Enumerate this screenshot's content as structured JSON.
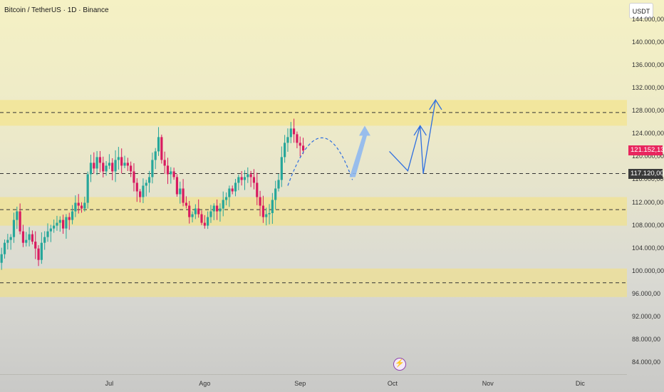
{
  "header": {
    "title": "Bitcoin / TetherUS · 1D · Binance"
  },
  "price_scale": {
    "currency": "USDT"
  },
  "current_price": {
    "label": "121.152,13",
    "value": 121152.13,
    "color": "#e8265e"
  },
  "level_price": {
    "label": "117.120,00",
    "value": 117120,
    "color": "#3a3a3a"
  },
  "event_icon": "lightning-icon",
  "colors": {
    "up": "#26a69a",
    "down": "#d81b60",
    "zone": "#f5e27a",
    "projection": "#2f6fe0"
  },
  "chart_data": {
    "type": "candlestick",
    "title": "Bitcoin / TetherUS · 1D · Binance",
    "y_axis": {
      "min": 82000,
      "max": 147500,
      "ticks": [
        {
          "value": 144000,
          "label": "144.000,00"
        },
        {
          "value": 140000,
          "label": "140.000,00"
        },
        {
          "value": 136000,
          "label": "136.000,00"
        },
        {
          "value": 132000,
          "label": "132.000,00"
        },
        {
          "value": 128000,
          "label": "128.000,00"
        },
        {
          "value": 124000,
          "label": "124.000,00"
        },
        {
          "value": 120000,
          "label": "120.000,00"
        },
        {
          "value": 116000,
          "label": "116.000,00"
        },
        {
          "value": 112000,
          "label": "112.000,00"
        },
        {
          "value": 108000,
          "label": "108.000,00"
        },
        {
          "value": 104000,
          "label": "104.000,00"
        },
        {
          "value": 100000,
          "label": "100.000,00"
        },
        {
          "value": 96000,
          "label": "96.000,00"
        },
        {
          "value": 92000,
          "label": "92.000,00"
        },
        {
          "value": 88000,
          "label": "88.000,00"
        },
        {
          "value": 84000,
          "label": "84.000,00"
        }
      ]
    },
    "x_axis": {
      "labels": [
        {
          "label": "Jul",
          "day": 35
        },
        {
          "label": "Ago",
          "day": 66
        },
        {
          "label": "Sep",
          "day": 97
        },
        {
          "label": "Oct",
          "day": 127
        },
        {
          "label": "Nov",
          "day": 158
        },
        {
          "label": "Dic",
          "day": 188
        }
      ]
    },
    "zones": [
      {
        "from": 125500,
        "to": 130000
      },
      {
        "from": 108000,
        "to": 113000
      },
      {
        "from": 95500,
        "to": 100500
      }
    ],
    "levels": [
      127800,
      110800,
      98000,
      117120
    ],
    "closes": [
      103000,
      105000,
      105500,
      106000,
      109000,
      110500,
      107000,
      105000,
      105500,
      106500,
      105200,
      104000,
      102000,
      105000,
      106000,
      107000,
      107500,
      108000,
      108500,
      109000,
      107500,
      109500,
      109000,
      110500,
      112000,
      111500,
      111000,
      112000,
      117000,
      119000,
      118000,
      120000,
      119000,
      117500,
      118500,
      119000,
      117500,
      119500,
      120000,
      118500,
      119000,
      118500,
      117500,
      115500,
      114000,
      113000,
      115000,
      115500,
      116500,
      119500,
      121000,
      123500,
      119500,
      118500,
      117000,
      117500,
      116500,
      113500,
      114500,
      112000,
      111500,
      109500,
      110000,
      111000,
      110000,
      108500,
      108000,
      109500,
      110500,
      111500,
      110500,
      111000,
      112500,
      113000,
      114500,
      114000,
      115500,
      116500,
      116000,
      116500,
      117000,
      116500,
      115500,
      113000,
      111500,
      109500,
      110000,
      110200,
      112500,
      114500,
      116000,
      120000,
      122500,
      123500,
      125000,
      124000,
      122500,
      122000,
      121152.13
    ]
  },
  "annotations": {
    "dashed_arc": {
      "from": {
        "day": 93,
        "price": 115000
      },
      "peak": {
        "day": 104,
        "price": 125000
      },
      "to": {
        "day": 114,
        "price": 116000
      }
    },
    "wide_arrow": {
      "from": {
        "day": 114,
        "price": 116500
      },
      "to": {
        "day": 118,
        "price": 125500
      }
    },
    "projection_path": [
      {
        "day": 126,
        "price": 121000
      },
      {
        "day": 132,
        "price": 117600
      },
      {
        "day": 136,
        "price": 125500
      },
      {
        "day": 134,
        "price": 123800
      },
      {
        "day": 136,
        "price": 125500
      },
      {
        "day": 138,
        "price": 123800
      },
      {
        "day": 136,
        "price": 125500
      },
      {
        "day": 137,
        "price": 117100
      },
      {
        "day": 141,
        "price": 130000
      },
      {
        "day": 139,
        "price": 128300
      },
      {
        "day": 141,
        "price": 130000
      },
      {
        "day": 143,
        "price": 128300
      }
    ]
  }
}
